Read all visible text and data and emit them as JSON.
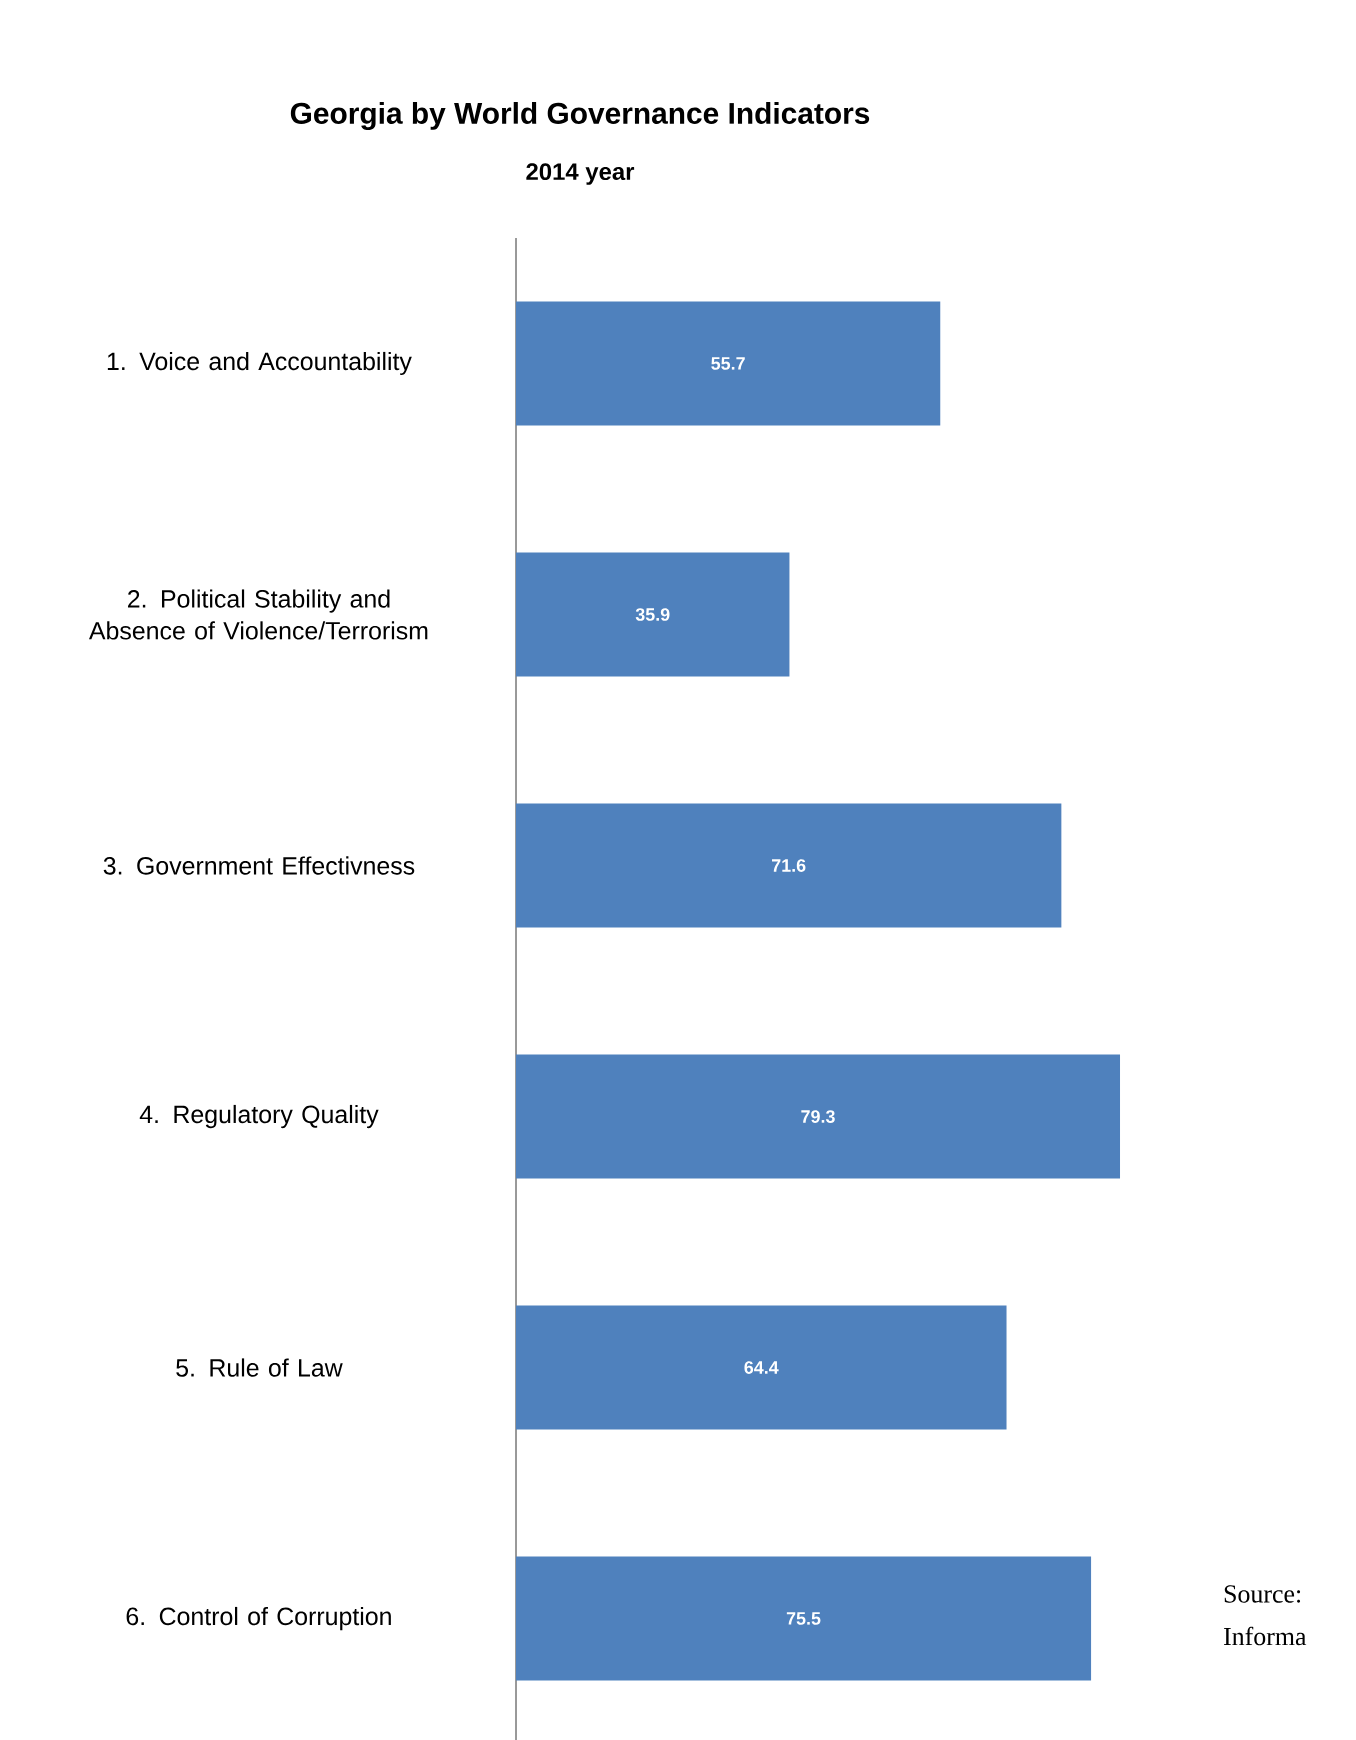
{
  "chart_data": {
    "type": "bar",
    "orientation": "horizontal",
    "title": "Georgia by World Governance Indicators",
    "subtitle": "2014 year",
    "categories": [
      "1. Voice and Accountability",
      "2. Political Stability and Absence of Violence/Terrorism",
      "3. Government Effectivness",
      "4. Regulatory Quality",
      "5. Rule of Law",
      "6. Control of Corruption"
    ],
    "values": [
      55.7,
      35.9,
      71.6,
      79.3,
      64.4,
      75.5
    ],
    "color": "#4f81bd",
    "data_labels": true,
    "annotations": [
      "Source:",
      "Informa"
    ]
  }
}
